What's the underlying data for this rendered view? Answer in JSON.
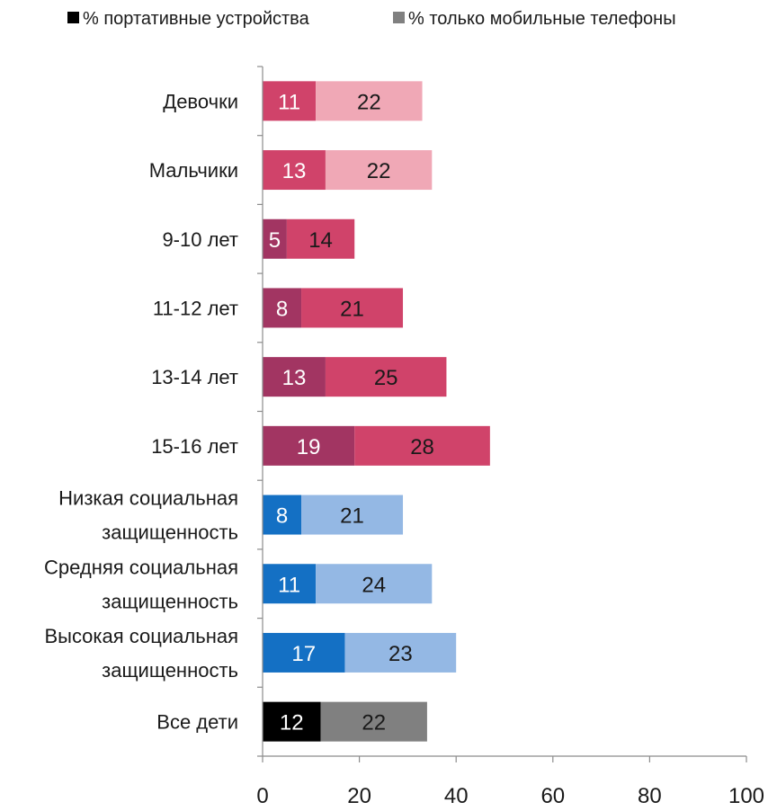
{
  "chart_data": {
    "type": "bar",
    "orientation": "horizontal",
    "stacked": true,
    "legend": {
      "placement": "top",
      "entries": [
        {
          "label": "% портативные устройства",
          "color": "#000000"
        },
        {
          "label": "% только мобильные телефоны",
          "color": "#808080"
        }
      ]
    },
    "categories": [
      {
        "label": [
          "Девочки"
        ],
        "values": [
          11,
          22
        ],
        "colors": [
          "#D0436A",
          "#F0A8B6"
        ],
        "text_colors": [
          "#ffffff",
          "#1a1a1a"
        ]
      },
      {
        "label": [
          "Мальчики"
        ],
        "values": [
          13,
          22
        ],
        "colors": [
          "#D0436A",
          "#F0A8B6"
        ],
        "text_colors": [
          "#ffffff",
          "#1a1a1a"
        ]
      },
      {
        "label": [
          "9-10 лет"
        ],
        "values": [
          5,
          14
        ],
        "colors": [
          "#A23562",
          "#D0436A"
        ],
        "text_colors": [
          "#ffffff",
          "#1a1a1a"
        ]
      },
      {
        "label": [
          "11-12 лет"
        ],
        "values": [
          8,
          21
        ],
        "colors": [
          "#A23562",
          "#D0436A"
        ],
        "text_colors": [
          "#ffffff",
          "#1a1a1a"
        ]
      },
      {
        "label": [
          "13-14 лет"
        ],
        "values": [
          13,
          25
        ],
        "colors": [
          "#A23562",
          "#D0436A"
        ],
        "text_colors": [
          "#ffffff",
          "#1a1a1a"
        ]
      },
      {
        "label": [
          "15-16 лет"
        ],
        "values": [
          19,
          28
        ],
        "colors": [
          "#A23562",
          "#D0436A"
        ],
        "text_colors": [
          "#ffffff",
          "#1a1a1a"
        ]
      },
      {
        "label": [
          "Низкая социальная",
          "защищенность"
        ],
        "values": [
          8,
          21
        ],
        "colors": [
          "#1470C4",
          "#94B8E4"
        ],
        "text_colors": [
          "#ffffff",
          "#1a1a1a"
        ]
      },
      {
        "label": [
          "Средняя социальная",
          "защищенность"
        ],
        "values": [
          11,
          24
        ],
        "colors": [
          "#1470C4",
          "#94B8E4"
        ],
        "text_colors": [
          "#ffffff",
          "#1a1a1a"
        ]
      },
      {
        "label": [
          "Высокая  социальная",
          "защищенность"
        ],
        "values": [
          17,
          23
        ],
        "colors": [
          "#1470C4",
          "#94B8E4"
        ],
        "text_colors": [
          "#ffffff",
          "#1a1a1a"
        ]
      },
      {
        "label": [
          "Все дети"
        ],
        "values": [
          12,
          22
        ],
        "colors": [
          "#000000",
          "#808080"
        ],
        "text_colors": [
          "#ffffff",
          "#1a1a1a"
        ]
      }
    ],
    "xlim": [
      0,
      100
    ],
    "xticks": [
      0,
      20,
      40,
      60,
      80,
      100
    ],
    "grid": false
  }
}
